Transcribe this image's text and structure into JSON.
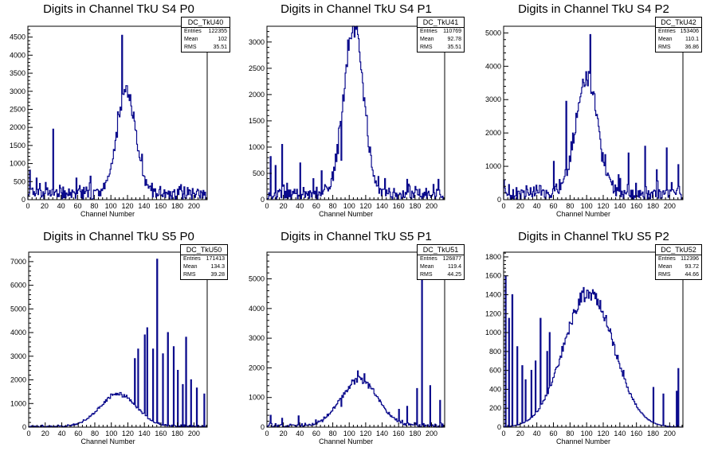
{
  "line_color": "#0a0a8c",
  "chart_data": [
    {
      "type": "histogram",
      "title": "Digits in Channel TkU S4 P0",
      "xlabel": "Channel Number",
      "xlim": [
        0,
        216
      ],
      "ylim": [
        0,
        4800
      ],
      "yticks": [
        0,
        500,
        1000,
        1500,
        2000,
        2500,
        3000,
        3500,
        4000,
        4500
      ],
      "xticks": [
        0,
        20,
        40,
        60,
        80,
        100,
        120,
        140,
        160,
        180,
        200
      ],
      "stats": {
        "name": "DC_TkU40",
        "entries": "122355",
        "mean": "102",
        "rms": "35.51"
      },
      "peak": {
        "center": 118,
        "height": 2900,
        "width": 11
      },
      "baseline": 300,
      "spikes": [
        [
          2,
          820
        ],
        [
          10,
          600
        ],
        [
          14,
          450
        ],
        [
          30,
          1950
        ],
        [
          42,
          350
        ],
        [
          58,
          600
        ],
        [
          70,
          350
        ],
        [
          75,
          650
        ],
        [
          96,
          650
        ],
        [
          113,
          4550
        ],
        [
          116,
          3050
        ]
      ]
    },
    {
      "type": "histogram",
      "title": "Digits in Channel TkU S4 P1",
      "xlabel": "Channel Number",
      "xlim": [
        0,
        216
      ],
      "ylim": [
        0,
        3300
      ],
      "yticks": [
        0,
        500,
        1000,
        1500,
        2000,
        2500,
        3000
      ],
      "xticks": [
        0,
        20,
        40,
        60,
        80,
        100,
        120,
        140,
        160,
        180,
        200
      ],
      "stats": {
        "name": "DC_TkU41",
        "entries": "110769",
        "mean": "92.78",
        "rms": "35.51"
      },
      "peak": {
        "center": 105,
        "height": 3150,
        "width": 12
      },
      "baseline": 200,
      "spikes": [
        [
          4,
          820
        ],
        [
          10,
          650
        ],
        [
          18,
          1050
        ],
        [
          40,
          700
        ],
        [
          56,
          400
        ],
        [
          66,
          550
        ],
        [
          78,
          400
        ],
        [
          85,
          1050
        ],
        [
          90,
          750
        ]
      ]
    },
    {
      "type": "histogram",
      "title": "Digits in Channel TkU S4 P2",
      "xlabel": "Channel Number",
      "xlim": [
        0,
        216
      ],
      "ylim": [
        0,
        5200
      ],
      "yticks": [
        0,
        1000,
        2000,
        3000,
        4000,
        5000
      ],
      "xticks": [
        0,
        20,
        40,
        60,
        80,
        100,
        120,
        140,
        160,
        180,
        200
      ],
      "stats": {
        "name": "DC_TkU42",
        "entries": "153406",
        "mean": "110.1",
        "rms": "36.86"
      },
      "peak": {
        "center": 100,
        "height": 3500,
        "width": 13
      },
      "baseline": 300,
      "spikes": [
        [
          60,
          1150
        ],
        [
          75,
          2950
        ],
        [
          83,
          2000
        ],
        [
          90,
          2900
        ],
        [
          104,
          4950
        ],
        [
          118,
          1150
        ],
        [
          125,
          800
        ],
        [
          138,
          750
        ],
        [
          150,
          1400
        ],
        [
          170,
          1600
        ],
        [
          184,
          900
        ],
        [
          196,
          1550
        ],
        [
          210,
          1050
        ]
      ]
    },
    {
      "type": "histogram",
      "title": "Digits in Channel TkU S5 P0",
      "xlabel": "Channel Number",
      "xlim": [
        0,
        216
      ],
      "ylim": [
        0,
        7400
      ],
      "yticks": [
        0,
        1000,
        2000,
        3000,
        4000,
        5000,
        6000,
        7000
      ],
      "xticks": [
        0,
        20,
        40,
        60,
        80,
        100,
        120,
        140,
        160,
        180,
        200
      ],
      "stats": {
        "name": "DC_TkU50",
        "entries": "171413",
        "mean": "134.3",
        "rms": "39.28"
      },
      "peak": {
        "center": 108,
        "height": 1380,
        "width": 22
      },
      "baseline": 50,
      "spikes": [
        [
          128,
          2900
        ],
        [
          132,
          3300
        ],
        [
          140,
          3900
        ],
        [
          143,
          4200
        ],
        [
          150,
          3300
        ],
        [
          155,
          7100
        ],
        [
          162,
          3100
        ],
        [
          168,
          4000
        ],
        [
          175,
          3400
        ],
        [
          180,
          2400
        ],
        [
          186,
          1800
        ],
        [
          190,
          3800
        ],
        [
          196,
          2000
        ],
        [
          203,
          1650
        ],
        [
          212,
          1400
        ]
      ]
    },
    {
      "type": "histogram",
      "title": "Digits in Channel TkU S5 P1",
      "xlabel": "Channel Number",
      "xlim": [
        0,
        216
      ],
      "ylim": [
        0,
        5900
      ],
      "yticks": [
        0,
        1000,
        2000,
        3000,
        4000,
        5000
      ],
      "xticks": [
        0,
        20,
        40,
        60,
        80,
        100,
        120,
        140,
        160,
        180,
        200
      ],
      "stats": {
        "name": "DC_TkU51",
        "entries": "126877",
        "mean": "119.4",
        "rms": "44.25"
      },
      "peak": {
        "center": 112,
        "height": 1550,
        "width": 22
      },
      "baseline": 80,
      "spikes": [
        [
          4,
          400
        ],
        [
          18,
          300
        ],
        [
          38,
          380
        ],
        [
          90,
          700
        ],
        [
          110,
          1900
        ],
        [
          118,
          1800
        ],
        [
          160,
          600
        ],
        [
          170,
          700
        ],
        [
          182,
          1300
        ],
        [
          188,
          5300
        ],
        [
          198,
          1400
        ],
        [
          210,
          900
        ]
      ]
    },
    {
      "type": "histogram",
      "title": "Digits in Channel TkU S5 P2",
      "xlabel": "Channel Number",
      "xlim": [
        0,
        216
      ],
      "ylim": [
        0,
        1850
      ],
      "yticks": [
        0,
        200,
        400,
        600,
        800,
        1000,
        1200,
        1400,
        1600,
        1800
      ],
      "xticks": [
        0,
        20,
        40,
        60,
        80,
        100,
        120,
        140,
        160,
        180,
        200
      ],
      "stats": {
        "name": "DC_TkU52",
        "entries": "112396",
        "mean": "93.72",
        "rms": "44.66"
      },
      "peak": {
        "center": 102,
        "height": 1430,
        "width": 30
      },
      "baseline": 0,
      "spikes": [
        [
          2,
          1600
        ],
        [
          6,
          1150
        ],
        [
          10,
          1400
        ],
        [
          16,
          850
        ],
        [
          22,
          650
        ],
        [
          26,
          500
        ],
        [
          33,
          600
        ],
        [
          38,
          700
        ],
        [
          44,
          1150
        ],
        [
          52,
          800
        ],
        [
          55,
          1000
        ],
        [
          144,
          600
        ],
        [
          180,
          420
        ],
        [
          192,
          350
        ],
        [
          208,
          380
        ],
        [
          210,
          620
        ]
      ]
    }
  ]
}
